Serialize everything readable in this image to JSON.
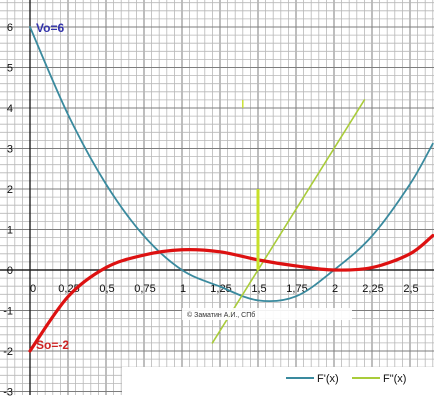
{
  "chart_data": {
    "type": "line",
    "title": "",
    "xlabel": "",
    "ylabel": "",
    "xlim": [
      0,
      2.65
    ],
    "ylim": [
      -3,
      6.5
    ],
    "grid": true,
    "legend": "bottom-right",
    "x_tick_labels": [
      "0",
      "0,25",
      "0,5",
      "0,75",
      "1",
      "1,25",
      "1,5",
      "1,75",
      "2",
      "2,25",
      "2,5"
    ],
    "x_ticks": [
      0,
      0.25,
      0.5,
      0.75,
      1,
      1.25,
      1.5,
      1.75,
      2,
      2.25,
      2.5
    ],
    "y_tick_labels": [
      "6",
      "5",
      "4",
      "3",
      "2",
      "1",
      "0",
      "-1",
      "-2",
      "-3"
    ],
    "y_ticks": [
      6,
      5,
      4,
      3,
      2,
      1,
      0,
      -1,
      -2,
      -3
    ],
    "series": [
      {
        "name": "F'(x)",
        "color": "#3a8a9e",
        "x": [
          0,
          0.25,
          0.5,
          0.75,
          1,
          1.25,
          1.5,
          1.75,
          2,
          2.25,
          2.5,
          2.65
        ],
        "values": [
          6,
          3.84,
          2.12,
          0.84,
          0,
          -0.41,
          -0.75,
          -0.65,
          0,
          0.84,
          2.12,
          3.12
        ]
      },
      {
        "name": "F\"(x)",
        "color": "#a9cc3a",
        "x": [
          1.2,
          2.2
        ],
        "values": [
          -1.8,
          4.2
        ]
      },
      {
        "name": "",
        "color": "#dd1111",
        "x": [
          0,
          0.25,
          0.5,
          0.75,
          1,
          1.25,
          1.5,
          1.75,
          2,
          2.25,
          2.5,
          2.65
        ],
        "values": [
          -2,
          -0.66,
          0.06,
          0.37,
          0.5,
          0.45,
          0.25,
          0.1,
          0,
          0.06,
          0.4,
          0.85
        ]
      }
    ],
    "markers": [
      {
        "type": "vertical-segment",
        "x": 1.5,
        "y_from": 0,
        "y_to": 2,
        "color": "#c7e02a"
      },
      {
        "type": "small-tick",
        "x": 1.4,
        "y": 4.1,
        "color": "#c7e02a"
      }
    ],
    "annotations": [
      {
        "text": "Vo=6",
        "x": 0,
        "y": 6,
        "color": "#3333aa"
      },
      {
        "text": "So=-2",
        "x": 0,
        "y": -2,
        "color": "#cc2222"
      }
    ],
    "watermark": "© Заматин А.И., СПб"
  }
}
